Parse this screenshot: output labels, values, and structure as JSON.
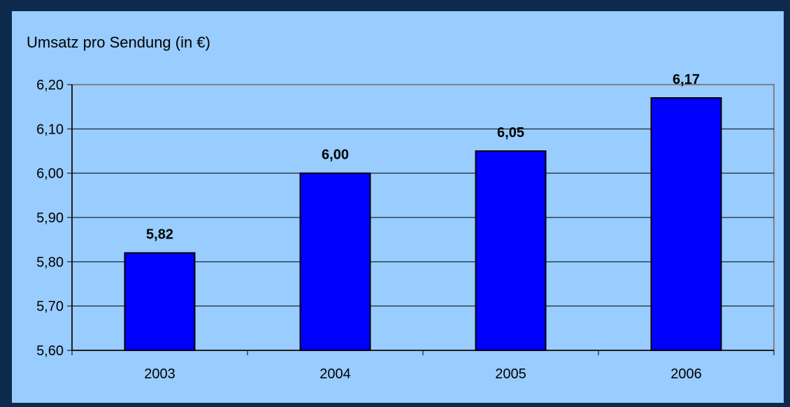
{
  "colors": {
    "frame": "#0d2a4d",
    "panel": "#99ccff",
    "bar": "#0000ff",
    "bar_outline": "#000000",
    "grid": "#000000",
    "plot_border": "#808080"
  },
  "chart_data": {
    "type": "bar",
    "title": "Umsatz pro Sendung (in €)",
    "xlabel": "",
    "ylabel": "",
    "categories": [
      "2003",
      "2004",
      "2005",
      "2006"
    ],
    "values": [
      5.82,
      6.0,
      6.05,
      6.17
    ],
    "data_labels": [
      "5,82",
      "6,00",
      "6,05",
      "6,17"
    ],
    "ylim": [
      5.6,
      6.2
    ],
    "yticks": [
      5.6,
      5.7,
      5.8,
      5.9,
      6.0,
      6.1,
      6.2
    ],
    "ytick_labels": [
      "5,60",
      "5,70",
      "5,80",
      "5,90",
      "6,00",
      "6,10",
      "6,20"
    ],
    "grid": true,
    "legend": "none"
  }
}
